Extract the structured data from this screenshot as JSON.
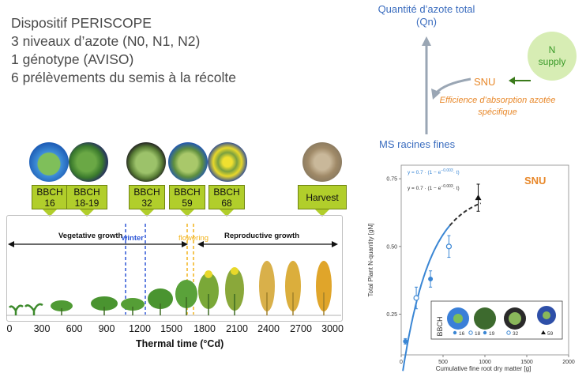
{
  "intro": {
    "lines": [
      "Dispositif PERISCOPE",
      "3 niveaux d’azote (N0, N1, N2)",
      "1 génotype (AVISO)",
      "6 prélèvements du semis à la récolte"
    ]
  },
  "stages": [
    {
      "line1": "BBCH",
      "line2": "16"
    },
    {
      "line1": "BBCH",
      "line2": "18-19"
    },
    {
      "line1": "BBCH",
      "line2": "32"
    },
    {
      "line1": "BBCH",
      "line2": "59"
    },
    {
      "line1": "BBCH",
      "line2": "68"
    },
    {
      "line1": "Harvest",
      "line2": ""
    }
  ],
  "timeline": {
    "vegetative": "Vegetative growth",
    "winter": "winter",
    "flowering": "flowering",
    "reproductive": "Reproductive growth",
    "axis_title": "Thermal time (°Cd)",
    "ticks": [
      "0",
      "300",
      "600",
      "900",
      "1200",
      "1500",
      "1800",
      "2100",
      "2400",
      "2700",
      "3000"
    ],
    "colors": {
      "winter": "#2e57d6",
      "flowering": "#f2b31b",
      "flag": "#b1ce2b"
    }
  },
  "schema": {
    "qn_label": "Quantité d’azote total (Qn)",
    "snu": "SNU",
    "efficiency": "Efficience d’absorption azotée spécifique",
    "roots": "MS racines fines",
    "n_supply": "N supply",
    "colors": {
      "blue": "#3b6dbf",
      "orange": "#e8882a",
      "green": "#3a9a28"
    }
  },
  "chart_data": {
    "type": "scatter",
    "title": "SNU",
    "xlabel": "Cumulative fine root dry matter  [g]",
    "ylabel": "Total Plant N-quantity [gN]",
    "xlim": [
      0,
      2000
    ],
    "ylim": [
      0.1,
      0.8
    ],
    "xticks": [
      "0",
      "500",
      "1000",
      "1500",
      "2000"
    ],
    "yticks": [
      "0.25",
      "0.50",
      "0.75"
    ],
    "eq_fit": "y = 0.7 · (1 − e",
    "eq_fit_exp": "−0.003",
    "eq_fit_tail": "· t)",
    "eq_pred": "y = 0.7 · (1 − e",
    "eq_pred_exp": "−0.003",
    "eq_pred_tail": "· t)",
    "legend_title": "BBCH",
    "legend": [
      "16",
      "18",
      "19",
      "32",
      "59"
    ],
    "points": [
      {
        "stage": "16",
        "x": 50,
        "y": 0.15,
        "err": 0.01,
        "marker": "filled-circle"
      },
      {
        "stage": "18",
        "x": 180,
        "y": 0.31,
        "err": 0.04,
        "marker": "open-circle"
      },
      {
        "stage": "19",
        "x": 350,
        "y": 0.38,
        "err": 0.03,
        "marker": "filled-circle"
      },
      {
        "stage": "32",
        "x": 570,
        "y": 0.5,
        "err": 0.04,
        "marker": "open-circle"
      },
      {
        "stage": "59",
        "x": 920,
        "y": 0.68,
        "err": 0.05,
        "marker": "triangle"
      }
    ],
    "fit_curve": {
      "asymptote": 0.7,
      "rate": 0.003,
      "x_max_fit": 580,
      "x_max_pred": 950
    },
    "colors": {
      "fit": "#3a86d4",
      "points": "#3a86d4",
      "pred": "#333333",
      "title": "#e8882a"
    }
  }
}
